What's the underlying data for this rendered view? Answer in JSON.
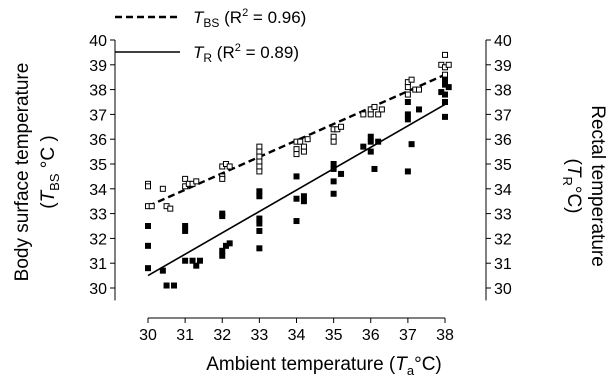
{
  "chart_data": {
    "type": "scatter",
    "xlabel": {
      "pre": "Ambient temperature (",
      "sym": "T",
      "sub": "a",
      "post": "°C)"
    },
    "ylabel_left": {
      "line1": "Body surface temperature",
      "line2_pre": "(",
      "sym": "T",
      "sub": "BS",
      "post": " °C )"
    },
    "ylabel_right": {
      "line1": "Rectal temperature",
      "line2_pre": "(",
      "sym": "T",
      "sub": "R",
      "post": "°C)"
    },
    "x_ticks": [
      30,
      31,
      32,
      33,
      34,
      35,
      36,
      37,
      38
    ],
    "y_ticks": [
      30,
      31,
      32,
      33,
      34,
      35,
      36,
      37,
      38,
      39,
      40
    ],
    "xlim": [
      29.5,
      38.6
    ],
    "ylim": [
      29.5,
      40
    ],
    "legend_placement": "top-left",
    "legend": [
      {
        "sym": "T",
        "sub": "BS",
        "r2_text": " (R",
        "sup": "2",
        "value": " = 0.96)",
        "style": "dashed"
      },
      {
        "sym": "T",
        "sub": "R",
        "r2_text": " (R",
        "sup": "2",
        "value": " = 0.89)",
        "style": "solid"
      }
    ],
    "series": [
      {
        "name": "T_BS",
        "marker": "open-square",
        "trend": {
          "x": [
            30,
            38
          ],
          "y": [
            33.3,
            38.6
          ],
          "style": "dashed"
        },
        "points": [
          [
            30,
            34.2
          ],
          [
            30,
            34.1
          ],
          [
            30,
            33.3
          ],
          [
            30.1,
            33.3
          ],
          [
            30.4,
            34.0
          ],
          [
            30.5,
            33.3
          ],
          [
            30.6,
            33.2
          ],
          [
            31,
            34.4
          ],
          [
            31,
            34.1
          ],
          [
            31.1,
            34.2
          ],
          [
            31.2,
            34.2
          ],
          [
            31.3,
            34.3
          ],
          [
            32,
            34.9
          ],
          [
            32,
            34.5
          ],
          [
            32,
            34.4
          ],
          [
            32.1,
            35.0
          ],
          [
            32.2,
            34.9
          ],
          [
            33,
            35.7
          ],
          [
            33,
            35.5
          ],
          [
            33,
            35.3
          ],
          [
            33,
            35.1
          ],
          [
            33,
            34.9
          ],
          [
            33,
            34.7
          ],
          [
            34,
            35.9
          ],
          [
            34,
            35.6
          ],
          [
            34,
            35.4
          ],
          [
            34.1,
            35.9
          ],
          [
            34.2,
            35.7
          ],
          [
            34.2,
            35.5
          ],
          [
            34.3,
            36.0
          ],
          [
            35,
            36.4
          ],
          [
            35,
            36.1
          ],
          [
            35,
            35.9
          ],
          [
            35.1,
            36.4
          ],
          [
            35.2,
            36.5
          ],
          [
            35.8,
            37.0
          ],
          [
            36,
            37.2
          ],
          [
            36,
            37.0
          ],
          [
            36.1,
            37.3
          ],
          [
            36.2,
            37.0
          ],
          [
            36.3,
            37.2
          ],
          [
            37,
            38.3
          ],
          [
            37,
            38.1
          ],
          [
            37,
            37.8
          ],
          [
            37.1,
            38.4
          ],
          [
            37.2,
            38.0
          ],
          [
            37.3,
            38.0
          ],
          [
            37.9,
            39.0
          ],
          [
            38,
            39.4
          ],
          [
            38,
            38.9
          ],
          [
            38,
            38.6
          ],
          [
            38.1,
            39.0
          ]
        ]
      },
      {
        "name": "T_R",
        "marker": "filled-square",
        "trend": {
          "x": [
            30,
            38
          ],
          "y": [
            30.5,
            37.4
          ],
          "style": "solid"
        },
        "points": [
          [
            30,
            32.5
          ],
          [
            30,
            31.7
          ],
          [
            30,
            30.8
          ],
          [
            30.4,
            30.7
          ],
          [
            30.5,
            30.1
          ],
          [
            30.7,
            30.1
          ],
          [
            31,
            32.5
          ],
          [
            31,
            32.3
          ],
          [
            31,
            31.1
          ],
          [
            31.2,
            31.1
          ],
          [
            31.3,
            30.9
          ],
          [
            31.4,
            31.1
          ],
          [
            32,
            33.0
          ],
          [
            32,
            32.9
          ],
          [
            32,
            31.5
          ],
          [
            32,
            31.3
          ],
          [
            32.1,
            31.7
          ],
          [
            32.2,
            31.8
          ],
          [
            33,
            33.9
          ],
          [
            33,
            33.7
          ],
          [
            33,
            32.8
          ],
          [
            33,
            32.6
          ],
          [
            33,
            32.3
          ],
          [
            33,
            31.6
          ],
          [
            34,
            34.5
          ],
          [
            34,
            33.6
          ],
          [
            34,
            32.7
          ],
          [
            34.2,
            33.7
          ],
          [
            34.2,
            33.5
          ],
          [
            35,
            35.0
          ],
          [
            35,
            34.8
          ],
          [
            35,
            34.3
          ],
          [
            35,
            33.8
          ],
          [
            35.2,
            34.6
          ],
          [
            35.8,
            35.7
          ],
          [
            36,
            36.1
          ],
          [
            36,
            35.9
          ],
          [
            36,
            35.5
          ],
          [
            36.1,
            34.8
          ],
          [
            36.2,
            35.9
          ],
          [
            37,
            37.5
          ],
          [
            37,
            37.0
          ],
          [
            37,
            36.8
          ],
          [
            37,
            34.7
          ],
          [
            37.1,
            35.8
          ],
          [
            37.3,
            37.2
          ],
          [
            37.9,
            37.9
          ],
          [
            38,
            38.4
          ],
          [
            38,
            38.2
          ],
          [
            38,
            37.8
          ],
          [
            38,
            37.5
          ],
          [
            38,
            36.9
          ],
          [
            38.1,
            38.1
          ]
        ]
      }
    ]
  }
}
